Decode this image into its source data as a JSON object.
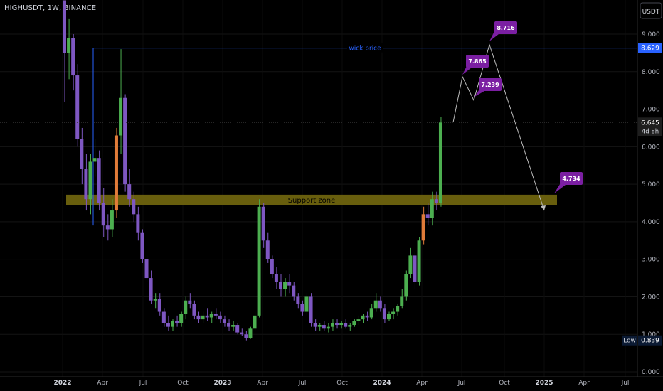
{
  "header": {
    "symbol": "HIGHUSDT, 1W, BINANCE"
  },
  "currency": "USDT",
  "chart_data": {
    "type": "candlestick",
    "yticks": [
      "9.000",
      "8.000",
      "7.000",
      "6.000",
      "5.000",
      "4.000",
      "3.000",
      "2.000",
      "1.000",
      "0.000"
    ],
    "ylim": [
      0,
      9.9
    ],
    "xticks": [
      {
        "label": "2022",
        "year": true
      },
      {
        "label": "Apr"
      },
      {
        "label": "Jul"
      },
      {
        "label": "Oct"
      },
      {
        "label": "2023",
        "year": true
      },
      {
        "label": "Apr"
      },
      {
        "label": "Jul"
      },
      {
        "label": "Oct"
      },
      {
        "label": "2024",
        "year": true
      },
      {
        "label": "Apr"
      },
      {
        "label": "Jul"
      },
      {
        "label": "Oct"
      },
      {
        "label": "2025",
        "year": true
      },
      {
        "label": "Apr"
      },
      {
        "label": "Jul"
      }
    ],
    "price_labels": {
      "wick": {
        "value": "8.629"
      },
      "last": {
        "value": "6.645",
        "countdown": "4d 8h"
      },
      "low": {
        "label": "Low",
        "value": "0.839"
      }
    },
    "support_zone": {
      "label": "Support zone",
      "low": 4.45,
      "high": 4.72
    },
    "wick_line": {
      "label": "wick price",
      "value": 8.629
    },
    "projection": [
      {
        "value": 6.65
      },
      {
        "value": 7.865
      },
      {
        "value": 7.239
      },
      {
        "value": 8.716
      },
      {
        "value": 4.3
      }
    ],
    "annotations": [
      {
        "value": "8.716",
        "price": 8.716
      },
      {
        "value": "7.865",
        "price": 7.865
      },
      {
        "value": "7.239",
        "price": 7.239
      },
      {
        "value": "4.734",
        "price": 4.734
      }
    ],
    "colors": {
      "up": "#4caf50",
      "down": "#7e57c2",
      "highlight": "#e07b39",
      "zone": "#7a6f0f",
      "wick_line": "#2962ff",
      "annotation": "#7b1fa2"
    },
    "candles": [
      [
        9.9,
        9.9,
        7.2,
        8.5
      ],
      [
        8.5,
        9.4,
        7.8,
        8.9
      ],
      [
        8.9,
        9.0,
        7.5,
        7.9
      ],
      [
        7.9,
        8.2,
        6.0,
        6.2
      ],
      [
        6.2,
        6.5,
        5.0,
        5.4
      ],
      [
        5.4,
        5.8,
        4.3,
        4.6
      ],
      [
        4.6,
        5.8,
        4.2,
        5.6
      ],
      [
        5.6,
        6.2,
        5.2,
        5.7
      ],
      [
        5.7,
        5.9,
        4.3,
        4.5
      ],
      [
        4.5,
        4.9,
        3.6,
        3.9
      ],
      [
        3.9,
        4.2,
        3.5,
        3.8
      ],
      [
        3.8,
        4.6,
        3.6,
        4.3
      ],
      [
        4.3,
        6.5,
        4.1,
        6.3
      ],
      [
        6.3,
        8.6,
        5.8,
        7.3
      ],
      [
        7.3,
        7.4,
        4.8,
        5.0
      ],
      [
        5.0,
        5.4,
        4.4,
        4.6
      ],
      [
        4.6,
        4.8,
        4.0,
        4.2
      ],
      [
        4.2,
        4.4,
        3.5,
        3.7
      ],
      [
        3.7,
        3.8,
        2.9,
        3.0
      ],
      [
        3.0,
        3.1,
        2.4,
        2.5
      ],
      [
        2.5,
        2.7,
        1.8,
        1.9
      ],
      [
        1.9,
        2.1,
        1.7,
        1.95
      ],
      [
        1.95,
        2.1,
        1.5,
        1.6
      ],
      [
        1.6,
        1.7,
        1.2,
        1.3
      ],
      [
        1.3,
        1.5,
        1.1,
        1.2
      ],
      [
        1.2,
        1.4,
        1.1,
        1.35
      ],
      [
        1.35,
        1.5,
        1.2,
        1.3
      ],
      [
        1.3,
        1.6,
        1.2,
        1.55
      ],
      [
        1.55,
        2.0,
        1.4,
        1.9
      ],
      [
        1.9,
        2.1,
        1.7,
        1.8
      ],
      [
        1.8,
        1.9,
        1.4,
        1.5
      ],
      [
        1.5,
        1.6,
        1.3,
        1.4
      ],
      [
        1.4,
        1.6,
        1.3,
        1.5
      ],
      [
        1.5,
        1.7,
        1.35,
        1.45
      ],
      [
        1.45,
        1.6,
        1.3,
        1.55
      ],
      [
        1.55,
        1.7,
        1.4,
        1.5
      ],
      [
        1.5,
        1.6,
        1.3,
        1.4
      ],
      [
        1.4,
        1.5,
        1.2,
        1.3
      ],
      [
        1.3,
        1.4,
        1.1,
        1.2
      ],
      [
        1.2,
        1.35,
        1.1,
        1.25
      ],
      [
        1.25,
        1.3,
        1.0,
        1.05
      ],
      [
        1.05,
        1.15,
        0.95,
        1.0
      ],
      [
        1.0,
        1.1,
        0.84,
        0.9
      ],
      [
        0.9,
        1.2,
        0.88,
        1.15
      ],
      [
        1.15,
        1.6,
        1.1,
        1.5
      ],
      [
        1.5,
        4.6,
        1.45,
        4.4
      ],
      [
        4.4,
        4.5,
        3.3,
        3.5
      ],
      [
        3.5,
        3.7,
        2.9,
        3.0
      ],
      [
        3.0,
        3.1,
        2.5,
        2.6
      ],
      [
        2.6,
        2.8,
        2.2,
        2.4
      ],
      [
        2.4,
        2.6,
        2.0,
        2.2
      ],
      [
        2.2,
        2.5,
        2.0,
        2.4
      ],
      [
        2.4,
        2.6,
        2.1,
        2.3
      ],
      [
        2.3,
        2.4,
        1.9,
        2.0
      ],
      [
        2.0,
        2.1,
        1.7,
        1.8
      ],
      [
        1.8,
        1.9,
        1.5,
        1.6
      ],
      [
        1.6,
        2.1,
        1.5,
        2.0
      ],
      [
        2.0,
        2.1,
        1.2,
        1.3
      ],
      [
        1.3,
        1.4,
        1.1,
        1.2
      ],
      [
        1.2,
        1.3,
        1.1,
        1.25
      ],
      [
        1.25,
        1.35,
        1.1,
        1.15
      ],
      [
        1.15,
        1.3,
        1.05,
        1.2
      ],
      [
        1.2,
        1.4,
        1.1,
        1.3
      ],
      [
        1.3,
        1.4,
        1.15,
        1.25
      ],
      [
        1.25,
        1.35,
        1.15,
        1.3
      ],
      [
        1.3,
        1.4,
        1.15,
        1.2
      ],
      [
        1.2,
        1.3,
        1.1,
        1.25
      ],
      [
        1.25,
        1.4,
        1.2,
        1.35
      ],
      [
        1.35,
        1.5,
        1.25,
        1.4
      ],
      [
        1.4,
        1.55,
        1.3,
        1.5
      ],
      [
        1.5,
        1.6,
        1.35,
        1.45
      ],
      [
        1.45,
        1.8,
        1.4,
        1.7
      ],
      [
        1.7,
        2.1,
        1.6,
        1.9
      ],
      [
        1.9,
        2.0,
        1.6,
        1.7
      ],
      [
        1.7,
        1.8,
        1.3,
        1.4
      ],
      [
        1.4,
        1.6,
        1.35,
        1.55
      ],
      [
        1.55,
        1.7,
        1.4,
        1.6
      ],
      [
        1.6,
        1.8,
        1.5,
        1.75
      ],
      [
        1.75,
        2.2,
        1.7,
        2.0
      ],
      [
        2.0,
        2.7,
        1.9,
        2.6
      ],
      [
        2.6,
        3.3,
        2.5,
        3.1
      ],
      [
        3.1,
        3.2,
        2.2,
        2.4
      ],
      [
        2.4,
        3.6,
        2.3,
        3.5
      ],
      [
        3.5,
        4.4,
        3.4,
        4.2
      ],
      [
        4.2,
        4.5,
        3.9,
        4.1
      ],
      [
        4.1,
        4.8,
        3.9,
        4.6
      ],
      [
        4.6,
        4.8,
        4.3,
        4.5
      ],
      [
        4.5,
        6.8,
        4.4,
        6.645
      ]
    ]
  }
}
